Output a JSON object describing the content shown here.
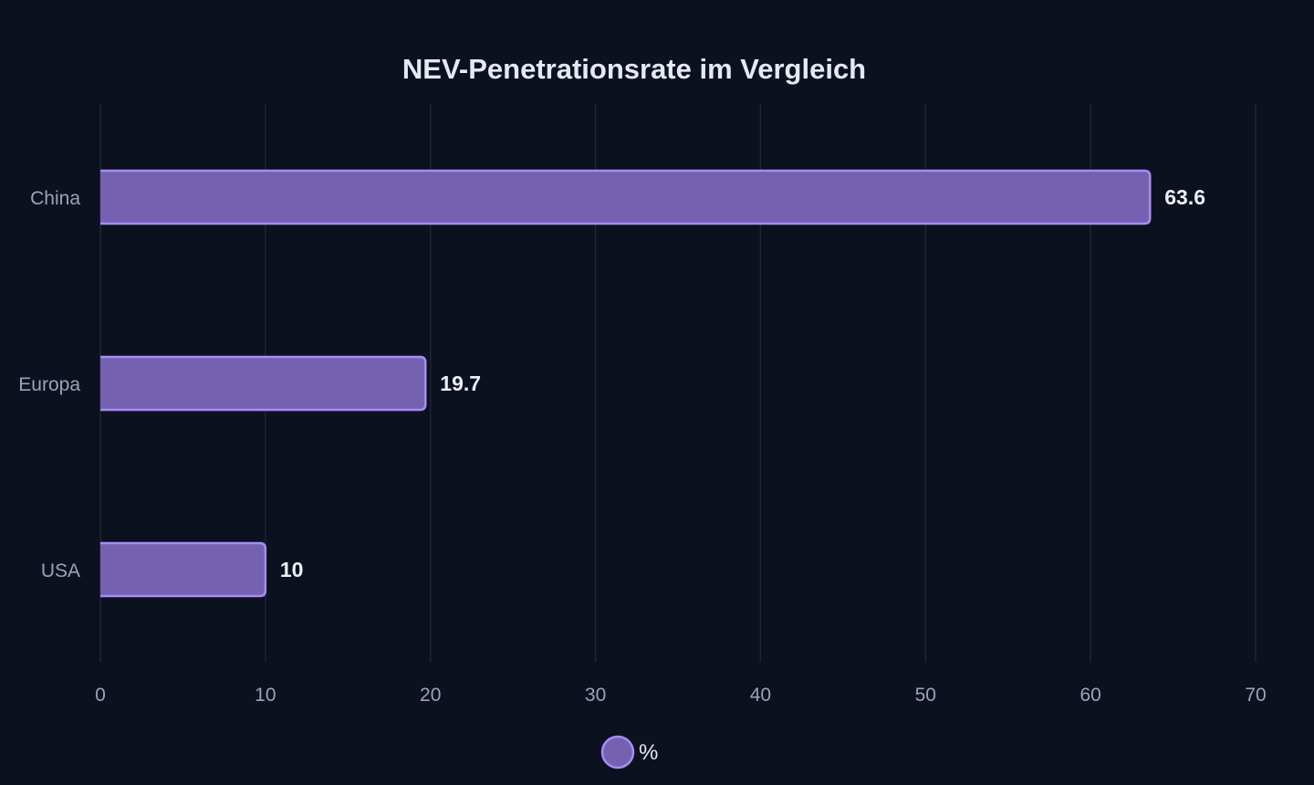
{
  "chart_data": {
    "type": "bar",
    "orientation": "horizontal",
    "title": "NEV-Penetrationsrate im Vergleich",
    "categories": [
      "China",
      "Europa",
      "USA"
    ],
    "series": [
      {
        "name": "%",
        "values": [
          63.6,
          19.7,
          10
        ]
      }
    ],
    "value_labels": [
      "63.6",
      "19.7",
      "10"
    ],
    "xlim": [
      0,
      70
    ],
    "x_ticks": [
      0,
      10,
      20,
      30,
      40,
      50,
      60,
      70
    ],
    "grid": true,
    "legend_position": "bottom-center",
    "colors": {
      "background": "#0c1120",
      "bar_fill": "#7462b0",
      "bar_stroke": "#a68cf5",
      "grid": "#1f2536",
      "tick_text": "#9aa3b8",
      "title_text": "#e6e9f2",
      "value_text": "#eef0f6"
    }
  }
}
